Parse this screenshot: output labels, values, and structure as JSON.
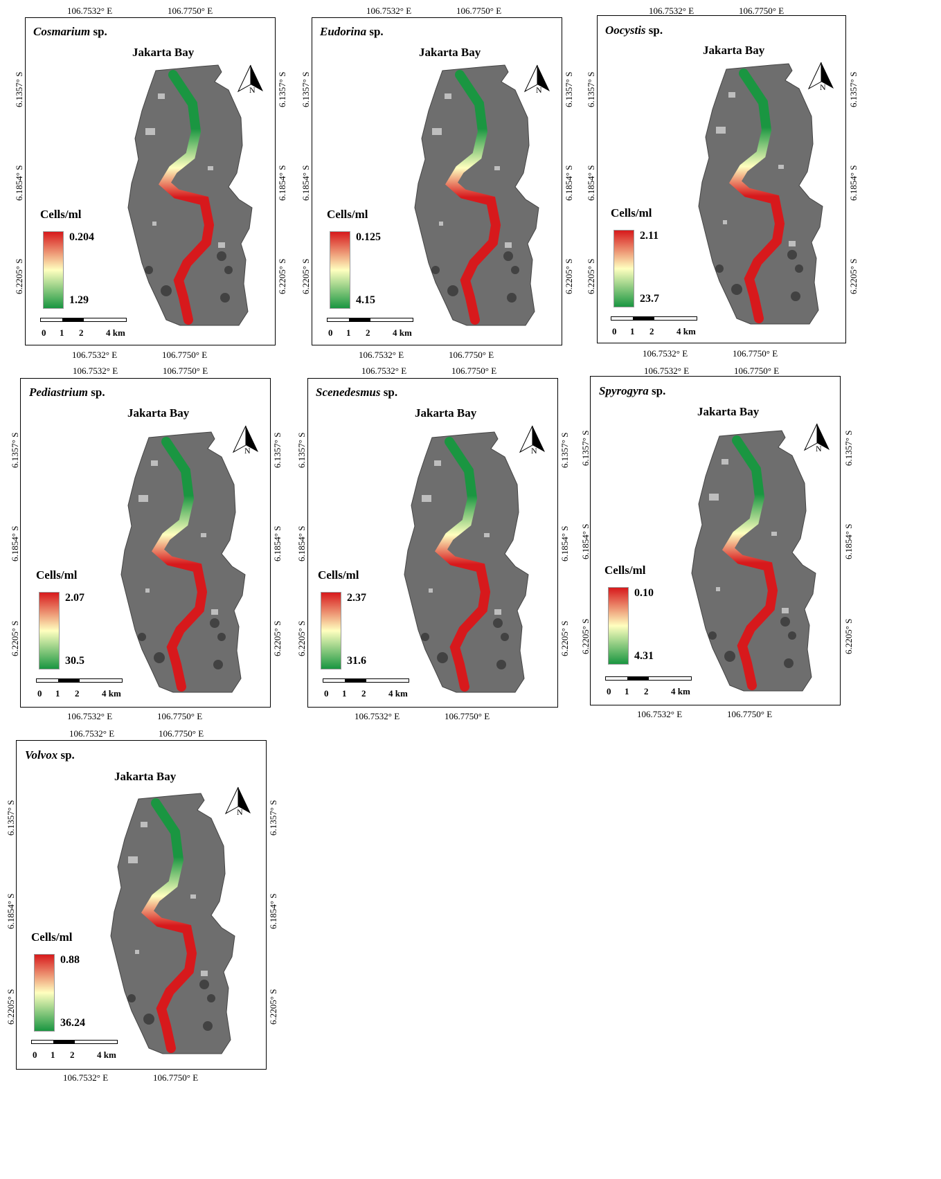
{
  "coords": {
    "lon_west": "106.7532° E",
    "lon_east": "106.7750° E",
    "lat_top": "6.1357° S",
    "lat_mid": "6.1854° S",
    "lat_bottom": "6.2205° S"
  },
  "common": {
    "bay_label": "Jakarta Bay",
    "legend_title": "Cells/ml",
    "north_label": "N",
    "sp_suffix": "sp.",
    "scale_labels": [
      "0",
      "1",
      "2",
      "4 km"
    ]
  },
  "colors": {
    "high": "#d7191c",
    "mid": "#ffffbf",
    "low": "#1a9641",
    "land": "#6e6e6e"
  },
  "panels": [
    {
      "genus": "Cosmarium",
      "legend_top": "0.204",
      "legend_bottom": "1.29"
    },
    {
      "genus": "Eudorina",
      "legend_top": "0.125",
      "legend_bottom": "4.15"
    },
    {
      "genus": "Oocystis",
      "legend_top": "2.11",
      "legend_bottom": "23.7"
    },
    {
      "genus": "Pediastrium",
      "legend_top": "2.07",
      "legend_bottom": "30.5"
    },
    {
      "genus": "Scenedesmus",
      "legend_top": "2.37",
      "legend_bottom": "31.6"
    },
    {
      "genus": "Spyrogyra",
      "legend_top": "0.10",
      "legend_bottom": "4.31"
    },
    {
      "genus": "Volvox",
      "legend_top": "0.88",
      "legend_bottom": "36.24"
    }
  ]
}
